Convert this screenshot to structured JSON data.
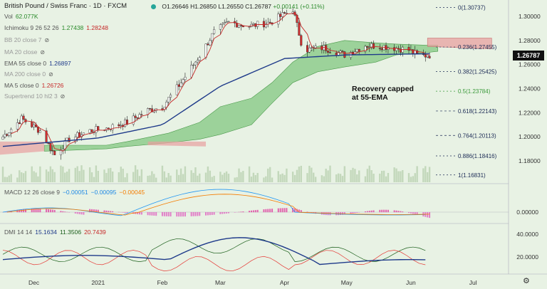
{
  "header": {
    "title": "British Pound / Swiss Franc · 1D · FXCM",
    "open": "O1.26646",
    "high": "H1.26850",
    "low": "L1.26550",
    "close": "C1.26787",
    "change": "+0.00141 (+0.11%)"
  },
  "indicators": {
    "vol": {
      "label": "Vol",
      "value": "62.077K"
    },
    "ichimoku": {
      "label": "Ichimoku 9 26 52 26",
      "v1": "1.27438",
      "v2": "1.28248"
    },
    "bb": {
      "label": "BB 20 close 7"
    },
    "ma20": {
      "label": "MA 20 close"
    },
    "ema55": {
      "label": "EMA 55 close 0",
      "value": "1.26897"
    },
    "ma200": {
      "label": "MA 200 close 0"
    },
    "ma5": {
      "label": "MA 5 close 0",
      "value": "1.26726"
    },
    "supertrend": {
      "label": "Supertrend 10 hl2 3"
    }
  },
  "annotation": {
    "line1": "Recovery capped",
    "line2": "at 55-EMA"
  },
  "price_box": "1.26787",
  "fib_levels": [
    {
      "label": "0(1.30737)",
      "value": 1.30737
    },
    {
      "label": "0.236(1.27455)",
      "value": 1.27455
    },
    {
      "label": "0.382(1.25425)",
      "value": 1.25425
    },
    {
      "label": "0.5(1.23784)",
      "value": 1.23784
    },
    {
      "label": "0.618(1.22143)",
      "value": 1.22143
    },
    {
      "label": "0.764(1.20113)",
      "value": 1.20113
    },
    {
      "label": "0.886(1.18416)",
      "value": 1.18416
    },
    {
      "label": "1(1.16831)",
      "value": 1.16831
    }
  ],
  "y_axis_labels": [
    "1.30000",
    "1.28000",
    "1.26000",
    "1.24000",
    "1.22000",
    "1.20000",
    "1.18000"
  ],
  "macd": {
    "label": "MACD 12 26 close 9",
    "v1": "−0.00051",
    "v2": "−0.00095",
    "v3": "−0.00045",
    "axis": [
      "0.00000"
    ]
  },
  "dmi": {
    "label": "DMI 14 14",
    "v1": "15.1634",
    "v2": "11.3506",
    "v3": "20.7439",
    "axis": [
      "40.0000",
      "20.0000"
    ]
  },
  "x_labels": [
    "Dec",
    "2021",
    "Feb",
    "Mar",
    "Apr",
    "May",
    "Jun",
    "Jul"
  ],
  "colors": {
    "background": "#e8f2e4",
    "up_candle": "#ffffff",
    "down_candle": "#d32f2f",
    "ema55": "#1e3a8a",
    "ma5": "#c62828",
    "cloud_bull": "#5cb85c",
    "cloud_bear": "#e8a0a0",
    "macd": "#2196f3",
    "signal": "#f57c00",
    "dmi_plus": "#1a5e1a",
    "dmi_minus": "#e53935",
    "adx": "#1e3a8a"
  },
  "chart_data": {
    "type": "line",
    "title": "British Pound / Swiss Franc · 1D · FXCM",
    "note": "Daily candlestick chart",
    "x_range": [
      "2020-11",
      "2021-07"
    ],
    "ylim": [
      1.165,
      1.315
    ],
    "price_path": [
      [
        "2020-11-16",
        1.2
      ],
      [
        "2020-11-25",
        1.215
      ],
      [
        "2020-12-04",
        1.205
      ],
      [
        "2020-12-11",
        1.185
      ],
      [
        "2020-12-18",
        1.198
      ],
      [
        "2020-12-28",
        1.205
      ],
      [
        "2021-01-05",
        1.207
      ],
      [
        "2021-01-15",
        1.212
      ],
      [
        "2021-01-25",
        1.222
      ],
      [
        "2021-02-01",
        1.225
      ],
      [
        "2021-02-10",
        1.245
      ],
      [
        "2021-02-20",
        1.27
      ],
      [
        "2021-02-26",
        1.287
      ],
      [
        "2021-03-05",
        1.295
      ],
      [
        "2021-03-15",
        1.292
      ],
      [
        "2021-03-25",
        1.295
      ],
      [
        "2021-04-01",
        1.302
      ],
      [
        "2021-04-05",
        1.306
      ],
      [
        "2021-04-10",
        1.272
      ],
      [
        "2021-04-20",
        1.274
      ],
      [
        "2021-04-30",
        1.268
      ],
      [
        "2021-05-10",
        1.276
      ],
      [
        "2021-05-20",
        1.275
      ],
      [
        "2021-05-31",
        1.272
      ],
      [
        "2021-06-05",
        1.267
      ],
      [
        "2021-06-10",
        1.2679
      ]
    ],
    "ema55_path": [
      [
        "2020-11-16",
        1.192
      ],
      [
        "2021-01-01",
        1.199
      ],
      [
        "2021-02-01",
        1.21
      ],
      [
        "2021-03-01",
        1.242
      ],
      [
        "2021-04-01",
        1.265
      ],
      [
        "2021-05-01",
        1.268
      ],
      [
        "2021-06-10",
        1.26897
      ]
    ],
    "annotation": "Recovery capped at 55-EMA"
  }
}
